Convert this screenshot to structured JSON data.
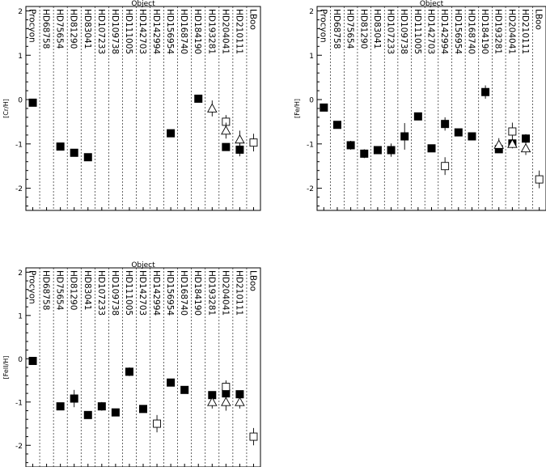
{
  "chart_data": [
    {
      "type": "scatter",
      "title": "Object",
      "xlabel": "",
      "ylabel": "[Cr/H]",
      "ylim": [
        -2.5,
        2.1
      ],
      "yticks": [
        -2,
        -1,
        0,
        1,
        2
      ],
      "grid": "dotted vertical separators between objects",
      "categories": [
        "Procyon",
        "HD68758",
        "HD75654",
        "HD81290",
        "HD83041",
        "HD107233",
        "HD109738",
        "HD111005",
        "HD142703",
        "HD142994",
        "HD156954",
        "HD168740",
        "HD184190",
        "HD193281",
        "HD204041",
        "HD210111",
        "LBoo"
      ],
      "series": [
        {
          "marker": "filled-square",
          "points": [
            {
              "x": "Procyon",
              "y": -0.07,
              "err": 0.05
            },
            {
              "x": "HD75654",
              "y": -1.06,
              "err": 0.05
            },
            {
              "x": "HD81290",
              "y": -1.2,
              "err": 0.05
            },
            {
              "x": "HD83041",
              "y": -1.3,
              "err": 0.05
            },
            {
              "x": "HD156954",
              "y": -0.76,
              "err": 0.05
            },
            {
              "x": "HD184190",
              "y": 0.02,
              "err": 0.05
            },
            {
              "x": "HD204041",
              "y": -1.07,
              "err": 0.05
            },
            {
              "x": "HD210111",
              "y": -1.13,
              "err": 0.15
            }
          ]
        },
        {
          "marker": "open-square",
          "points": [
            {
              "x": "HD204041",
              "y": -0.5,
              "err": 0.15
            },
            {
              "x": "LBoo",
              "y": -0.97,
              "err": 0.2
            }
          ]
        },
        {
          "marker": "open-triangle",
          "points": [
            {
              "x": "HD193281",
              "y": -0.2,
              "err": 0.18
            },
            {
              "x": "HD204041",
              "y": -0.7,
              "err": 0.18
            },
            {
              "x": "HD210111",
              "y": -0.9,
              "err": 0.2
            }
          ]
        }
      ]
    },
    {
      "type": "scatter",
      "title": "Object",
      "xlabel": "",
      "ylabel": "[Fe/H]",
      "ylim": [
        -2.5,
        2.1
      ],
      "yticks": [
        -2,
        -1,
        0,
        1,
        2
      ],
      "grid": "dotted vertical separators between objects",
      "categories": [
        "Procyon",
        "HD68758",
        "HD75654",
        "HD81290",
        "HD83041",
        "HD107233",
        "HD109738",
        "HD111005",
        "HD142703",
        "HD142994",
        "HD156954",
        "HD168740",
        "HD184190",
        "HD193281",
        "HD204041",
        "HD210111",
        "LBoo"
      ],
      "series": [
        {
          "marker": "filled-square",
          "points": [
            {
              "x": "Procyon",
              "y": -0.18,
              "err": 0.08
            },
            {
              "x": "HD68758",
              "y": -0.57,
              "err": 0.05
            },
            {
              "x": "HD75654",
              "y": -1.03,
              "err": 0.1
            },
            {
              "x": "HD81290",
              "y": -1.22,
              "err": 0.1
            },
            {
              "x": "HD83041",
              "y": -1.14,
              "err": 0.08
            },
            {
              "x": "HD107233",
              "y": -1.14,
              "err": 0.15
            },
            {
              "x": "HD109738",
              "y": -0.83,
              "err": 0.3
            },
            {
              "x": "HD111005",
              "y": -0.38,
              "err": 0.05
            },
            {
              "x": "HD142703",
              "y": -1.1,
              "err": 0.08
            },
            {
              "x": "HD142994",
              "y": -0.55,
              "err": 0.15
            },
            {
              "x": "HD156954",
              "y": -0.74,
              "err": 0.05
            },
            {
              "x": "HD168740",
              "y": -0.83,
              "err": 0.05
            },
            {
              "x": "HD184190",
              "y": 0.17,
              "err": 0.15
            },
            {
              "x": "HD193281",
              "y": -1.12,
              "err": 0.08
            },
            {
              "x": "HD204041",
              "y": -0.99,
              "err": 0.08
            },
            {
              "x": "HD210111",
              "y": -0.88,
              "err": 0.1
            }
          ]
        },
        {
          "marker": "open-square",
          "points": [
            {
              "x": "HD142994",
              "y": -1.5,
              "err": 0.2
            },
            {
              "x": "HD204041",
              "y": -0.72,
              "err": 0.2
            },
            {
              "x": "LBoo",
              "y": -1.8,
              "err": 0.2
            }
          ]
        },
        {
          "marker": "open-triangle",
          "points": [
            {
              "x": "HD193281",
              "y": -1.02,
              "err": 0.15
            },
            {
              "x": "HD204041",
              "y": -1.0,
              "err": 0.1
            },
            {
              "x": "HD210111",
              "y": -1.1,
              "err": 0.15
            }
          ]
        }
      ]
    },
    {
      "type": "scatter",
      "title": "Object",
      "xlabel": "",
      "ylabel": "[FeII/H]",
      "ylim": [
        -2.5,
        2.1
      ],
      "yticks": [
        -2,
        -1,
        0,
        1,
        2
      ],
      "grid": "dotted vertical separators between objects",
      "categories": [
        "Procyon",
        "HD68758",
        "HD75654",
        "HD81290",
        "HD83041",
        "HD107233",
        "HD109738",
        "HD111005",
        "HD142703",
        "HD142994",
        "HD156954",
        "HD168740",
        "HD184190",
        "HD193281",
        "HD204041",
        "HD210111",
        "LBoo"
      ],
      "series": [
        {
          "marker": "filled-square",
          "points": [
            {
              "x": "Procyon",
              "y": -0.05,
              "err": 0.05
            },
            {
              "x": "HD75654",
              "y": -1.1,
              "err": 0.08
            },
            {
              "x": "HD81290",
              "y": -0.92,
              "err": 0.2
            },
            {
              "x": "HD83041",
              "y": -1.3,
              "err": 0.05
            },
            {
              "x": "HD107233",
              "y": -1.1,
              "err": 0.1
            },
            {
              "x": "HD109738",
              "y": -1.24,
              "err": 0.05
            },
            {
              "x": "HD111005",
              "y": -0.3,
              "err": 0.1
            },
            {
              "x": "HD142703",
              "y": -1.16,
              "err": 0.05
            },
            {
              "x": "HD156954",
              "y": -0.55,
              "err": 0.08
            },
            {
              "x": "HD168740",
              "y": -0.72,
              "err": 0.05
            },
            {
              "x": "HD193281",
              "y": -0.84,
              "err": 0.08
            },
            {
              "x": "HD204041",
              "y": -0.8,
              "err": 0.1
            },
            {
              "x": "HD210111",
              "y": -0.82,
              "err": 0.08
            }
          ]
        },
        {
          "marker": "open-square",
          "points": [
            {
              "x": "HD142994",
              "y": -1.5,
              "err": 0.2
            },
            {
              "x": "HD204041",
              "y": -0.65,
              "err": 0.15
            },
            {
              "x": "LBoo",
              "y": -1.8,
              "err": 0.2
            }
          ]
        },
        {
          "marker": "open-triangle",
          "points": [
            {
              "x": "HD193281",
              "y": -1.0,
              "err": 0.15
            },
            {
              "x": "HD204041",
              "y": -1.0,
              "err": 0.2
            },
            {
              "x": "HD210111",
              "y": -1.0,
              "err": 0.15
            }
          ]
        }
      ]
    }
  ]
}
